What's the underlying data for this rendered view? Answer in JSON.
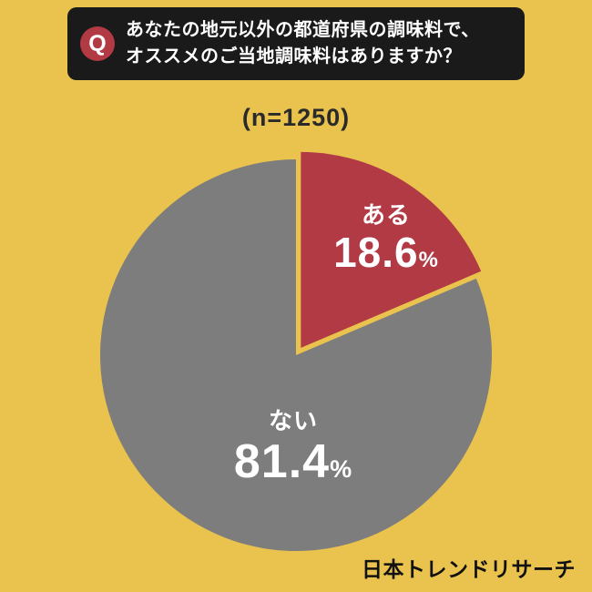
{
  "colors": {
    "background": "#e9c34e",
    "header_bg": "#1a1a1a",
    "accent_red": "#b23a45",
    "pie_gray": "#7d7d7d",
    "text_dark": "#2a2a2a",
    "text_footer": "#111111"
  },
  "header": {
    "q_label": "Q",
    "line1": "あなたの地元以外の都道府県の調味料で、",
    "line2": "オススメのご当地調味料はありますか？"
  },
  "footer": {
    "brand": "日本トレンドリサーチ"
  },
  "chart_data": {
    "type": "pie",
    "title": "あなたの地元以外の都道府県の調味料で、オススメのご当地調味料はありますか？",
    "sample_label": "(n=1250)",
    "sample_size": 1250,
    "labels": [
      "ある",
      "ない"
    ],
    "values": [
      18.6,
      81.4
    ],
    "unit": "%",
    "colors": [
      "#b23a45",
      "#7d7d7d"
    ],
    "start_angle_deg": 0,
    "direction": "clockwise",
    "explode": [
      0.045,
      0
    ],
    "legend": "none"
  }
}
